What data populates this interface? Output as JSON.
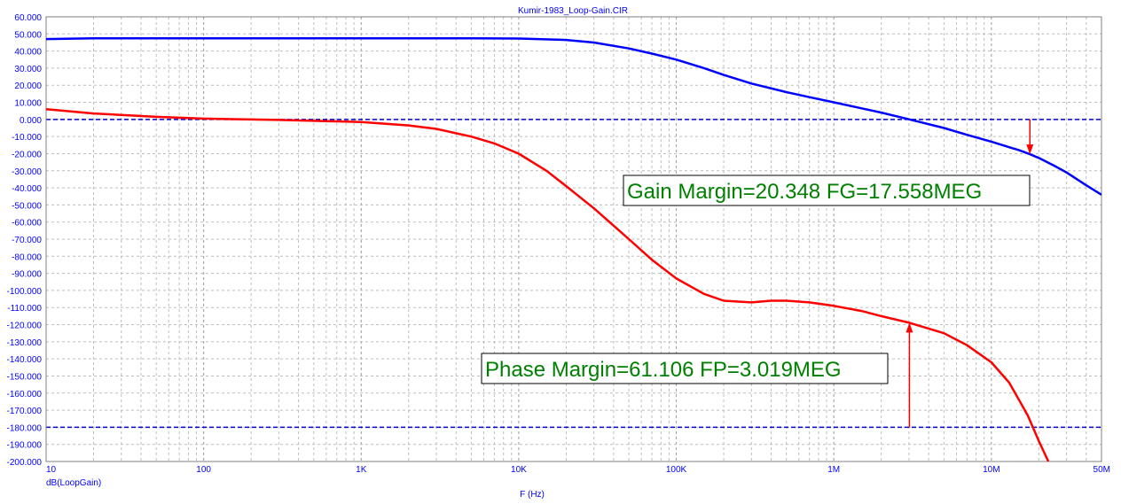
{
  "chart_data": {
    "type": "line",
    "title": "Kumir-1983_Loop-Gain.CIR",
    "xlabel": "F (Hz)",
    "ylabel": "dB(LoopGain)",
    "x_scale": "log",
    "xlim": [
      10,
      50000000
    ],
    "ylim": [
      -200,
      60
    ],
    "grid": true,
    "x_ticks": [
      {
        "value": 10,
        "label": "10"
      },
      {
        "value": 100,
        "label": "100"
      },
      {
        "value": 1000,
        "label": "1K"
      },
      {
        "value": 10000,
        "label": "10K"
      },
      {
        "value": 100000,
        "label": "100K"
      },
      {
        "value": 1000000,
        "label": "1M"
      },
      {
        "value": 10000000,
        "label": "10M"
      },
      {
        "value": 50000000,
        "label": "50M"
      }
    ],
    "y_ticks": [
      {
        "value": 60,
        "label": "60.000"
      },
      {
        "value": 50,
        "label": "50.000"
      },
      {
        "value": 40,
        "label": "40.000"
      },
      {
        "value": 30,
        "label": "30.000"
      },
      {
        "value": 20,
        "label": "20.000"
      },
      {
        "value": 10,
        "label": "10.000"
      },
      {
        "value": 0,
        "label": "0.000"
      },
      {
        "value": -10,
        "label": "-10.000"
      },
      {
        "value": -20,
        "label": "-20.000"
      },
      {
        "value": -30,
        "label": "-30.000"
      },
      {
        "value": -40,
        "label": "-40.000"
      },
      {
        "value": -50,
        "label": "-50.000"
      },
      {
        "value": -60,
        "label": "-60.000"
      },
      {
        "value": -70,
        "label": "-70.000"
      },
      {
        "value": -80,
        "label": "-80.000"
      },
      {
        "value": -90,
        "label": "-90.000"
      },
      {
        "value": -100,
        "label": "-100.000"
      },
      {
        "value": -110,
        "label": "-110.000"
      },
      {
        "value": -120,
        "label": "-120.000"
      },
      {
        "value": -130,
        "label": "-130.000"
      },
      {
        "value": -140,
        "label": "-140.000"
      },
      {
        "value": -150,
        "label": "-150.000"
      },
      {
        "value": -160,
        "label": "-160.000"
      },
      {
        "value": -170,
        "label": "-170.000"
      },
      {
        "value": -180,
        "label": "-180.000"
      },
      {
        "value": -190,
        "label": "-190.000"
      },
      {
        "value": -200,
        "label": "-200.000"
      }
    ],
    "reference_lines": [
      {
        "y": 0,
        "color": "#0000cc"
      },
      {
        "y": -180,
        "color": "#0000cc"
      }
    ],
    "series": [
      {
        "color": "#0000ff",
        "points": [
          [
            10,
            47
          ],
          [
            20,
            47.4
          ],
          [
            100,
            47.4
          ],
          [
            1000,
            47.4
          ],
          [
            5000,
            47.4
          ],
          [
            10000,
            47.3
          ],
          [
            20000,
            46.5
          ],
          [
            30000,
            45
          ],
          [
            50000,
            41.5
          ],
          [
            70000,
            38.5
          ],
          [
            100000,
            35
          ],
          [
            150000,
            30
          ],
          [
            200000,
            26
          ],
          [
            300000,
            21
          ],
          [
            500000,
            16
          ],
          [
            700000,
            13
          ],
          [
            1000000,
            10
          ],
          [
            1500000,
            6.5
          ],
          [
            2000000,
            4
          ],
          [
            3019000,
            0
          ],
          [
            5000000,
            -5
          ],
          [
            7000000,
            -9
          ],
          [
            10000000,
            -13
          ],
          [
            15000000,
            -18
          ],
          [
            17558000,
            -20.35
          ],
          [
            20000000,
            -22.5
          ],
          [
            25000000,
            -27
          ],
          [
            30000000,
            -31
          ],
          [
            40000000,
            -38.5
          ],
          [
            50000000,
            -44
          ]
        ]
      },
      {
        "color": "#ff0000",
        "points": [
          [
            10,
            6
          ],
          [
            20,
            3.5
          ],
          [
            50,
            1.5
          ],
          [
            100,
            0.5
          ],
          [
            300,
            -0.3
          ],
          [
            1000,
            -1.5
          ],
          [
            2000,
            -3.5
          ],
          [
            3000,
            -5.5
          ],
          [
            5000,
            -10
          ],
          [
            7000,
            -14
          ],
          [
            10000,
            -20
          ],
          [
            15000,
            -30
          ],
          [
            20000,
            -39
          ],
          [
            30000,
            -52
          ],
          [
            50000,
            -70
          ],
          [
            70000,
            -82
          ],
          [
            100000,
            -93
          ],
          [
            150000,
            -102
          ],
          [
            200000,
            -106
          ],
          [
            300000,
            -107
          ],
          [
            400000,
            -106
          ],
          [
            500000,
            -106
          ],
          [
            700000,
            -107
          ],
          [
            1000000,
            -109
          ],
          [
            1500000,
            -112
          ],
          [
            2000000,
            -115
          ],
          [
            3019000,
            -118.9
          ],
          [
            5000000,
            -125
          ],
          [
            7000000,
            -132
          ],
          [
            10000000,
            -142
          ],
          [
            13000000,
            -154
          ],
          [
            17000000,
            -173
          ],
          [
            20000000,
            -188
          ],
          [
            23000000,
            -200
          ]
        ]
      }
    ],
    "annotations": [
      {
        "text": "Gain Margin=20.348 FG=17.558MEG",
        "color": "#008000"
      },
      {
        "text": "Phase Margin=61.106 FP=3.019MEG",
        "color": "#008000"
      }
    ],
    "markers": [
      {
        "x": 17558000,
        "y_from": 0,
        "y_to": -20.348,
        "color": "#ff0000"
      },
      {
        "x": 3019000,
        "y_from": -180,
        "y_to": -118.894,
        "color": "#ff0000"
      }
    ]
  }
}
